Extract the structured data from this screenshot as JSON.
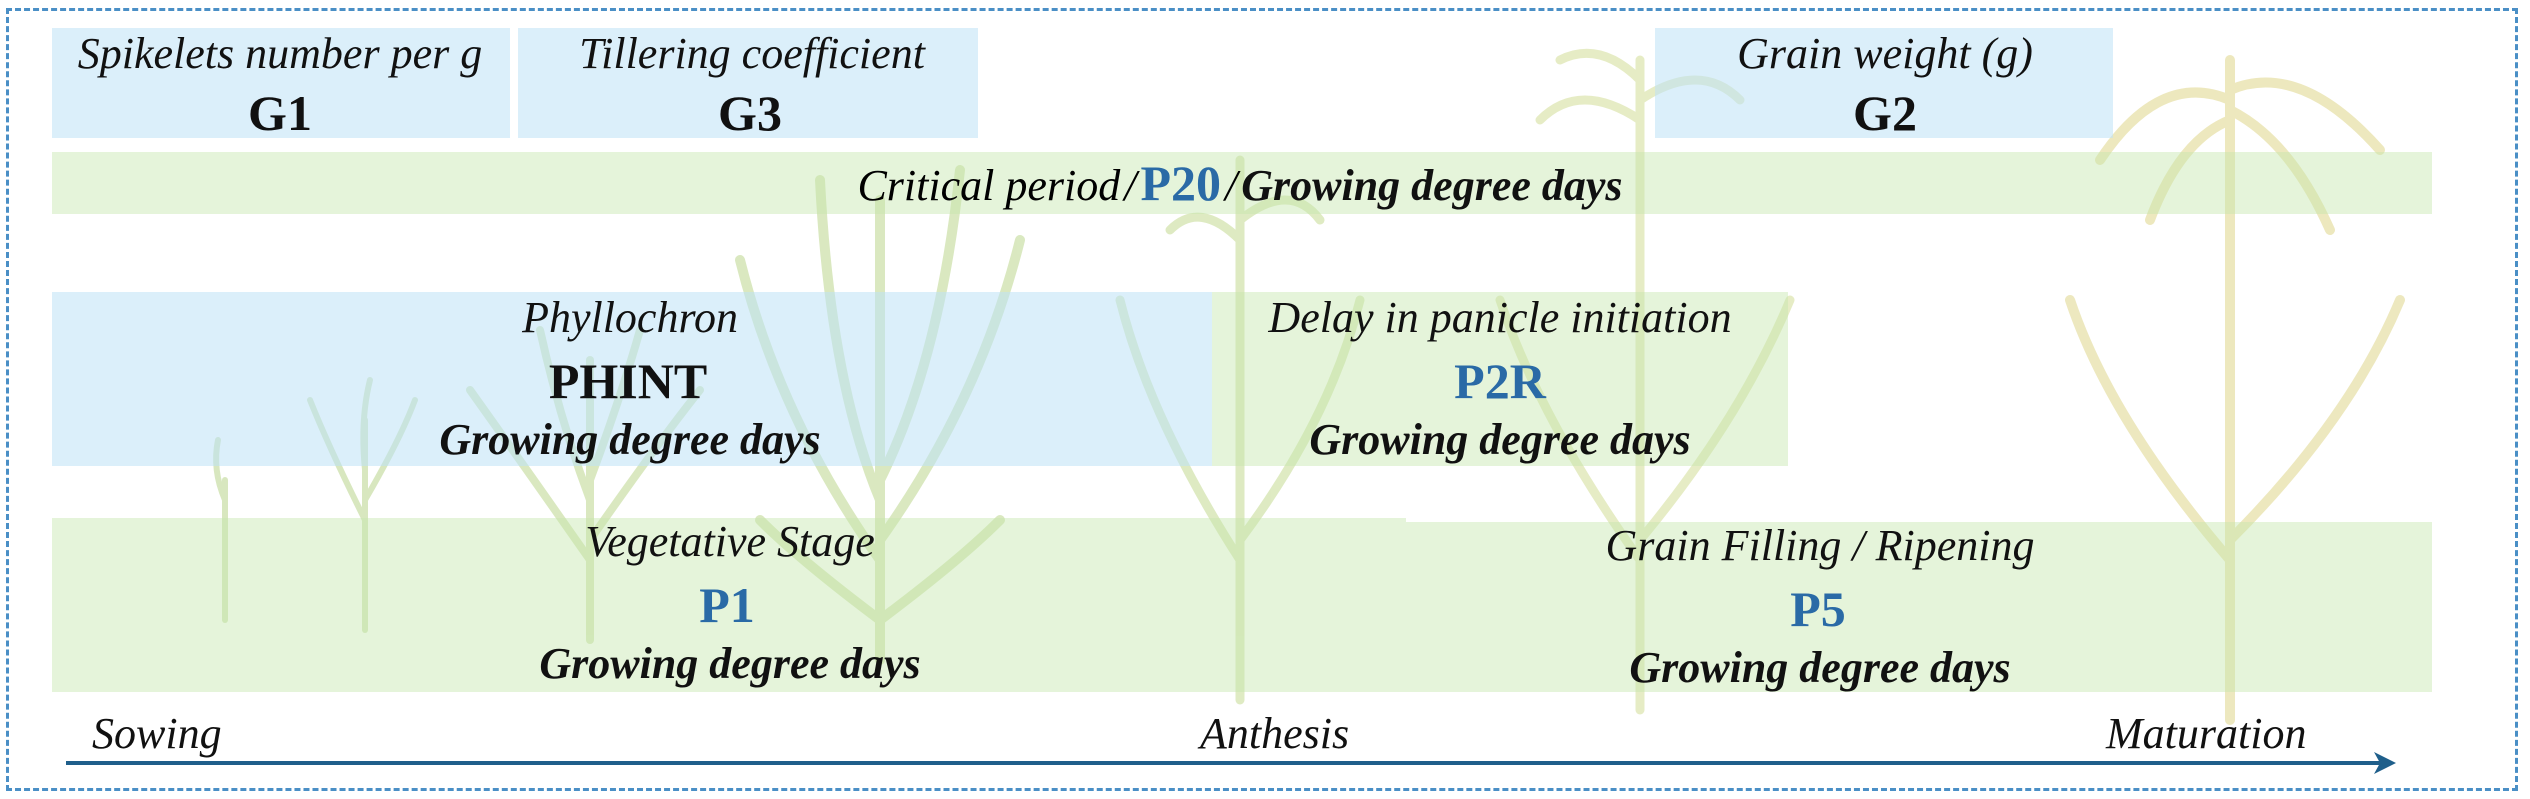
{
  "top_params": [
    {
      "desc": "Spikelets number per g",
      "code": "G1"
    },
    {
      "desc": "Tillering coefficient",
      "code": "G3"
    },
    {
      "desc": "Grain weight (g)",
      "code": "G2"
    }
  ],
  "critical": {
    "desc": "Critical period",
    "sep1": "/",
    "code": "P20",
    "sep2": "/",
    "unit": "Growing degree days"
  },
  "phyllochron": {
    "desc": "Phyllochron",
    "code": "PHINT",
    "unit": "Growing degree days"
  },
  "panicle": {
    "desc": "Delay in panicle initiation",
    "code": "P2R",
    "unit": "Growing degree days"
  },
  "vegetative": {
    "desc": "Vegetative Stage",
    "code": "P1",
    "unit": "Growing degree days"
  },
  "grain_filling": {
    "desc": "Grain Filling / Ripening",
    "code": "P5",
    "unit": "Growing degree days"
  },
  "timeline": {
    "start": "Sowing",
    "mid": "Anthesis",
    "end": "Maturation"
  },
  "colors": {
    "blue_box": "#bee1f6",
    "green_box": "#c6e6ac",
    "accent": "#2a6aa6",
    "border": "#4a8fc6",
    "arrow": "#1f5f8b"
  }
}
